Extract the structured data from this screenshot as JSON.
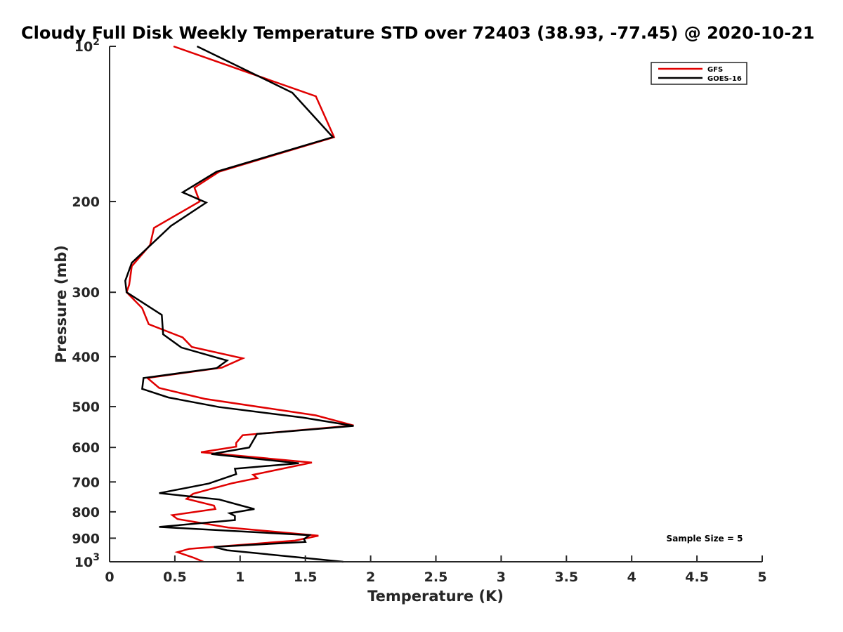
{
  "chart_data": {
    "type": "line",
    "title": "Cloudy Full Disk Weekly Temperature STD over 72403 (38.93, -77.45) @ 2020-10-21",
    "xlabel": "Temperature (K)",
    "ylabel": "Pressure (mb)",
    "xlim": [
      0,
      5
    ],
    "ylim": [
      100,
      1000
    ],
    "yscale": "log",
    "y_reversed": true,
    "grid": false,
    "legend_position": "top-right",
    "x_ticks": [
      0,
      0.5,
      1,
      1.5,
      2,
      2.5,
      3,
      3.5,
      4,
      4.5,
      5
    ],
    "x_tick_labels": [
      "0",
      "0.5",
      "1",
      "1.5",
      "2",
      "2.5",
      "3",
      "3.5",
      "4",
      "4.5",
      "5"
    ],
    "y_ticks": [
      100,
      200,
      300,
      400,
      500,
      600,
      700,
      800,
      900,
      1000
    ],
    "y_tick_labels": [
      {
        "base": "10",
        "exp": "2"
      },
      {
        "base": "200",
        "exp": ""
      },
      {
        "base": "300",
        "exp": ""
      },
      {
        "base": "400",
        "exp": ""
      },
      {
        "base": "500",
        "exp": ""
      },
      {
        "base": "600",
        "exp": ""
      },
      {
        "base": "700",
        "exp": ""
      },
      {
        "base": "800",
        "exp": ""
      },
      {
        "base": "900",
        "exp": ""
      },
      {
        "base": "10",
        "exp": "3"
      }
    ],
    "annotation": "Sample Size = 5",
    "series": [
      {
        "name": "GFS",
        "color": "#e00000",
        "points": [
          [
            0.49,
            100
          ],
          [
            1.58,
            125
          ],
          [
            1.72,
            150
          ],
          [
            0.84,
            175
          ],
          [
            0.65,
            188
          ],
          [
            0.69,
            200
          ],
          [
            0.34,
            225
          ],
          [
            0.31,
            243
          ],
          [
            0.17,
            267
          ],
          [
            0.15,
            290
          ],
          [
            0.13,
            300
          ],
          [
            0.25,
            322
          ],
          [
            0.3,
            346
          ],
          [
            0.56,
            367
          ],
          [
            0.63,
            383
          ],
          [
            1.02,
            403
          ],
          [
            0.86,
            420
          ],
          [
            0.29,
            440
          ],
          [
            0.38,
            460
          ],
          [
            0.73,
            483
          ],
          [
            1.58,
            520
          ],
          [
            1.87,
            544
          ],
          [
            1.02,
            568
          ],
          [
            0.97,
            588
          ],
          [
            0.97,
            598
          ],
          [
            0.7,
            613
          ],
          [
            1.55,
            642
          ],
          [
            1.1,
            678
          ],
          [
            1.13,
            688
          ],
          [
            0.94,
            704
          ],
          [
            0.64,
            738
          ],
          [
            0.59,
            755
          ],
          [
            0.8,
            778
          ],
          [
            0.81,
            790
          ],
          [
            0.48,
            812
          ],
          [
            0.52,
            826
          ],
          [
            0.91,
            858
          ],
          [
            1.6,
            890
          ],
          [
            1.42,
            910
          ],
          [
            0.61,
            944
          ],
          [
            0.52,
            958
          ],
          [
            0.64,
            981
          ],
          [
            0.72,
            1000
          ]
        ]
      },
      {
        "name": "GOES-16",
        "color": "#000000",
        "points": [
          [
            0.67,
            100
          ],
          [
            1.4,
            123
          ],
          [
            1.71,
            150
          ],
          [
            0.82,
            175
          ],
          [
            0.56,
            192
          ],
          [
            0.74,
            201
          ],
          [
            0.47,
            223
          ],
          [
            0.17,
            263
          ],
          [
            0.12,
            285
          ],
          [
            0.13,
            300
          ],
          [
            0.4,
            332
          ],
          [
            0.41,
            362
          ],
          [
            0.55,
            384
          ],
          [
            0.9,
            407
          ],
          [
            0.82,
            421
          ],
          [
            0.26,
            440
          ],
          [
            0.25,
            462
          ],
          [
            0.45,
            480
          ],
          [
            0.84,
            501
          ],
          [
            1.48,
            525
          ],
          [
            1.87,
            545
          ],
          [
            1.13,
            565
          ],
          [
            1.1,
            582
          ],
          [
            1.07,
            600
          ],
          [
            0.78,
            618
          ],
          [
            1.45,
            644
          ],
          [
            0.96,
            660
          ],
          [
            0.97,
            676
          ],
          [
            0.76,
            705
          ],
          [
            0.38,
            736
          ],
          [
            0.84,
            757
          ],
          [
            1.01,
            778
          ],
          [
            1.11,
            790
          ],
          [
            0.92,
            805
          ],
          [
            0.96,
            815
          ],
          [
            0.96,
            830
          ],
          [
            0.38,
            856
          ],
          [
            1.53,
            888
          ],
          [
            1.49,
            904
          ],
          [
            1.5,
            915
          ],
          [
            0.8,
            936
          ],
          [
            0.9,
            950
          ],
          [
            1.79,
            1000
          ]
        ]
      }
    ]
  }
}
